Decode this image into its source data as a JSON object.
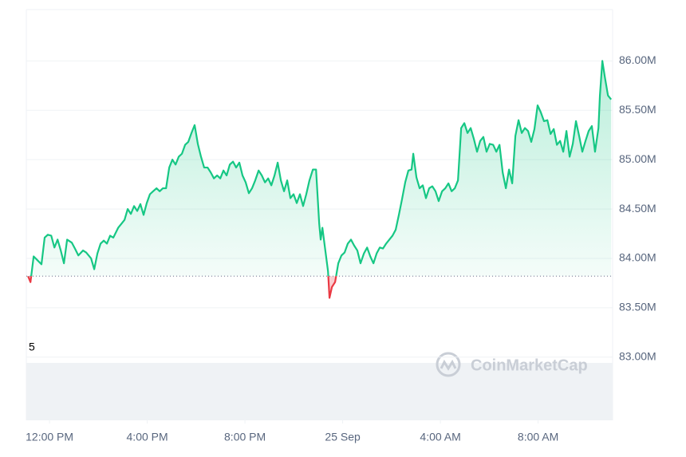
{
  "chart_data": {
    "type": "line",
    "watermark": "CoinMarketCap",
    "volume_label": "5",
    "baseline": 83.82,
    "xlim": [
      -0.95,
      23.05
    ],
    "xticks": [
      {
        "value": 0,
        "label": "12:00 PM"
      },
      {
        "value": 4,
        "label": "4:00 PM"
      },
      {
        "value": 8,
        "label": "8:00 PM"
      },
      {
        "value": 12,
        "label": "25 Sep"
      },
      {
        "value": 16,
        "label": "4:00 AM"
      },
      {
        "value": 20,
        "label": "8:00 AM"
      }
    ],
    "ylim": [
      82.36,
      86.52
    ],
    "yticks": [
      {
        "value": 83,
        "label": "83.00M"
      },
      {
        "value": 83.5,
        "label": "83.50M"
      },
      {
        "value": 84,
        "label": "84.00M"
      },
      {
        "value": 84.5,
        "label": "84.50M"
      },
      {
        "value": 85,
        "label": "85.00M"
      },
      {
        "value": 85.5,
        "label": "85.50M"
      },
      {
        "value": 86,
        "label": "86.00M"
      }
    ],
    "grid": true,
    "up_color": "#16c784",
    "down_color": "#ea3943",
    "series": [
      {
        "x": [
          -0.88,
          -0.78,
          -0.65,
          -0.49,
          -0.33,
          -0.2,
          -0.07,
          0.07,
          0.2,
          0.33,
          0.46,
          0.59,
          0.72,
          0.91,
          1.04,
          1.18,
          1.37,
          1.5,
          1.7,
          1.83,
          1.96,
          2.09,
          2.22,
          2.35,
          2.48,
          2.61,
          2.81,
          2.94,
          3.07,
          3.2,
          3.33,
          3.46,
          3.59,
          3.72,
          3.85,
          3.98,
          4.11,
          4.24,
          4.38,
          4.51,
          4.64,
          4.77,
          4.9,
          5.03,
          5.16,
          5.29,
          5.42,
          5.55,
          5.68,
          5.81,
          5.94,
          6.07,
          6.2,
          6.33,
          6.47,
          6.6,
          6.73,
          6.86,
          6.99,
          7.12,
          7.25,
          7.38,
          7.51,
          7.64,
          7.77,
          7.9,
          8.03,
          8.16,
          8.29,
          8.42,
          8.56,
          8.69,
          8.82,
          8.95,
          9.08,
          9.21,
          9.34,
          9.47,
          9.6,
          9.73,
          9.86,
          9.99,
          10.12,
          10.25,
          10.38,
          10.51,
          10.64,
          10.78,
          10.91,
          11.04,
          11.1,
          11.17,
          11.3,
          11.4,
          11.46,
          11.56,
          11.69,
          11.82,
          11.95,
          12.08,
          12.21,
          12.34,
          12.47,
          12.6,
          12.73,
          12.87,
          13.0,
          13.13,
          13.26,
          13.39,
          13.52,
          13.65,
          13.78,
          13.91,
          14.04,
          14.17,
          14.3,
          14.43,
          14.56,
          14.69,
          14.82,
          14.89,
          15.02,
          15.15,
          15.28,
          15.41,
          15.54,
          15.67,
          15.8,
          15.93,
          16.07,
          16.2,
          16.33,
          16.46,
          16.59,
          16.72,
          16.85,
          16.98,
          17.11,
          17.24,
          17.37,
          17.5,
          17.63,
          17.76,
          17.89,
          18.02,
          18.16,
          18.29,
          18.42,
          18.55,
          18.68,
          18.81,
          18.94,
          19.07,
          19.2,
          19.33,
          19.46,
          19.59,
          19.72,
          19.85,
          19.98,
          20.11,
          20.24,
          20.38,
          20.51,
          20.64,
          20.77,
          20.9,
          21.03,
          21.16,
          21.29,
          21.42,
          21.55,
          21.68,
          21.81,
          21.94,
          22.07,
          22.2,
          22.33,
          22.47,
          22.53,
          22.63,
          22.73,
          22.86,
          22.99
        ],
        "values": [
          83.82,
          83.76,
          84.02,
          83.98,
          83.94,
          84.21,
          84.24,
          84.23,
          84.11,
          84.19,
          84.08,
          83.95,
          84.19,
          84.16,
          84.1,
          84.03,
          84.08,
          84.06,
          84.0,
          83.89,
          84.05,
          84.15,
          84.18,
          84.15,
          84.23,
          84.21,
          84.31,
          84.35,
          84.39,
          84.5,
          84.45,
          84.53,
          84.48,
          84.55,
          84.44,
          84.56,
          84.65,
          84.68,
          84.71,
          84.68,
          84.71,
          84.71,
          84.92,
          85.0,
          84.95,
          85.03,
          85.06,
          85.15,
          85.18,
          85.27,
          85.35,
          85.16,
          85.03,
          84.92,
          84.92,
          84.87,
          84.81,
          84.84,
          84.81,
          84.89,
          84.84,
          84.95,
          84.98,
          84.92,
          84.97,
          84.84,
          84.77,
          84.66,
          84.71,
          84.79,
          84.89,
          84.84,
          84.77,
          84.81,
          84.74,
          84.84,
          84.97,
          84.79,
          84.68,
          84.79,
          84.61,
          84.65,
          84.56,
          84.65,
          84.53,
          84.65,
          84.79,
          84.9,
          84.9,
          84.35,
          84.19,
          84.31,
          84.06,
          83.87,
          83.6,
          83.71,
          83.76,
          83.95,
          84.03,
          84.06,
          84.15,
          84.19,
          84.13,
          84.08,
          83.95,
          84.05,
          84.11,
          84.02,
          83.95,
          84.05,
          84.11,
          84.1,
          84.15,
          84.19,
          84.23,
          84.29,
          84.44,
          84.6,
          84.77,
          84.89,
          84.9,
          85.06,
          84.82,
          84.71,
          84.74,
          84.61,
          84.71,
          84.73,
          84.68,
          84.58,
          84.68,
          84.71,
          84.76,
          84.68,
          84.71,
          84.79,
          85.32,
          85.37,
          85.27,
          85.32,
          85.21,
          85.08,
          85.19,
          85.23,
          85.08,
          85.16,
          85.15,
          85.08,
          85.15,
          84.87,
          84.71,
          84.9,
          84.76,
          85.24,
          85.4,
          85.27,
          85.32,
          85.29,
          85.18,
          85.31,
          85.55,
          85.48,
          85.39,
          85.4,
          85.26,
          85.31,
          85.15,
          85.19,
          85.08,
          85.29,
          85.03,
          85.16,
          85.39,
          85.24,
          85.08,
          85.19,
          85.29,
          85.34,
          85.08,
          85.32,
          85.65,
          86.0,
          85.84,
          85.65,
          85.61
        ]
      }
    ]
  }
}
